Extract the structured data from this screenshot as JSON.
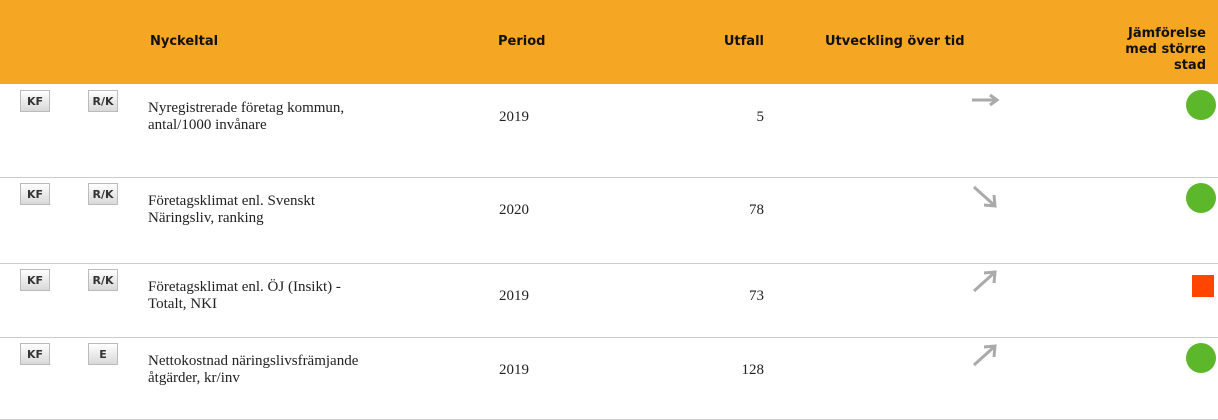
{
  "table": {
    "header": [
      "Nyckeltal",
      "Period",
      "Utfall",
      "Utveckling över tid",
      "Jämförelse med större stad"
    ],
    "rows": [
      {
        "badges": [
          "KF",
          "R/K"
        ],
        "name": "Nyregistrerade företag kommun, antal/1000 invånare",
        "period": "2019",
        "value": 5
      },
      {
        "badges": [
          "KF",
          "R/K"
        ],
        "name": "Företagsklimat enl. Svenskt Näringsliv, ranking",
        "period": "2020",
        "value": 78
      },
      {
        "badges": [
          "KF",
          "R/K"
        ],
        "name": "Företagsklimat enl. ÖJ (Insikt) - Totalt, NKI",
        "period": "2019",
        "value": 73
      },
      {
        "badges": [
          "KF",
          "E"
        ],
        "name": "Nettokostnad näringslivsfrämjande åtgärder, kr/inv",
        "period": "2019",
        "value": 128
      }
    ]
  }
}
